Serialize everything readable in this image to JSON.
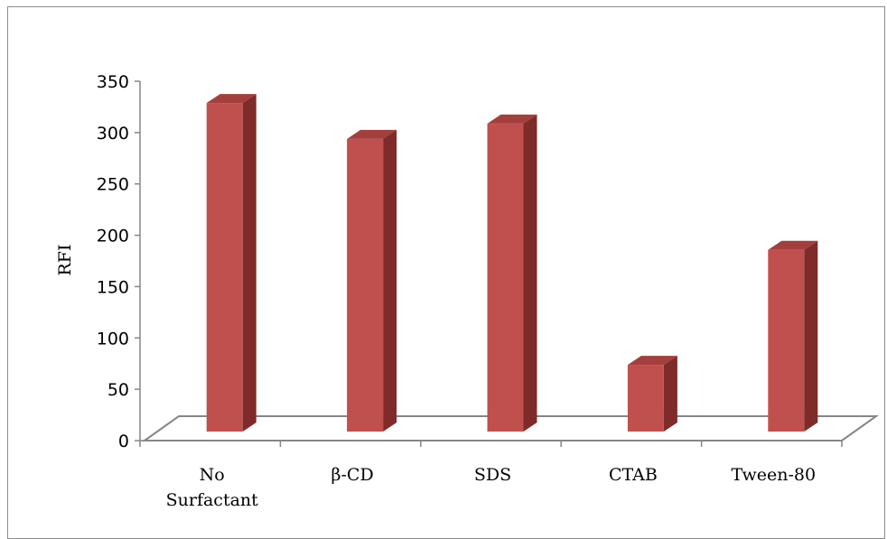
{
  "chart_data": {
    "type": "bar",
    "title": "",
    "xlabel": "",
    "ylabel": "RFI",
    "categories": [
      [
        "No",
        "Surfactant"
      ],
      [
        "β-CD"
      ],
      [
        "SDS"
      ],
      [
        "CTAB"
      ],
      [
        "Tween-80"
      ]
    ],
    "values": [
      320,
      285,
      300,
      65,
      177
    ],
    "ylim": [
      0,
      350
    ],
    "yticks": [
      0,
      50,
      100,
      150,
      200,
      250,
      300,
      350
    ],
    "grid": false,
    "legend": "none",
    "style": "3d-column"
  },
  "colors": {
    "bar_front": "#c0504d",
    "bar_side": "#7f2b29",
    "bar_top": "#a33f3c",
    "axis": "#868686"
  }
}
